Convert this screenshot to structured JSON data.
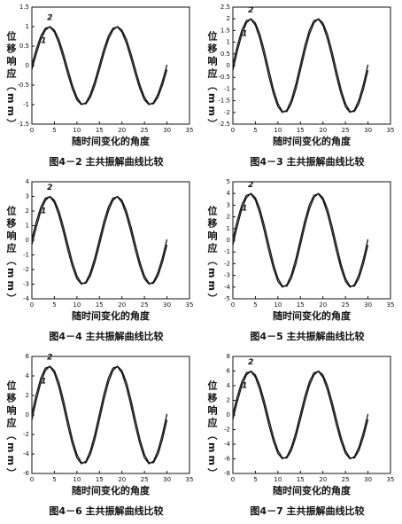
{
  "chart_data": [
    {
      "type": "line",
      "caption": "图4－2  主共振解曲线比较",
      "x_label": "随时间变化的角度",
      "y_label": "位移响应（mm）",
      "x": [
        0,
        1,
        2,
        3,
        4,
        5,
        6,
        7,
        8,
        9,
        10,
        11,
        12,
        13,
        14,
        15,
        16,
        17,
        18,
        19,
        20,
        21,
        22,
        23,
        24,
        25,
        26,
        27,
        28,
        29,
        30
      ],
      "xlim": [
        0,
        35
      ],
      "xticks": [
        0,
        5,
        10,
        15,
        20,
        25,
        30,
        35
      ],
      "ylim": [
        -1.5,
        1.5
      ],
      "yticks": [
        -1.5,
        -1,
        -0.5,
        0,
        0.5,
        1,
        1.5
      ],
      "series": [
        {
          "name": "1",
          "color": "#111",
          "values": [
            -0.1,
            0.31,
            0.67,
            0.91,
            1,
            0.91,
            0.67,
            0.31,
            -0.1,
            -0.5,
            -0.81,
            -0.98,
            -0.98,
            -0.81,
            -0.5,
            -0.1,
            0.31,
            0.67,
            0.91,
            1,
            0.91,
            0.67,
            0.31,
            -0.1,
            -0.5,
            -0.81,
            -0.98,
            -0.98,
            -0.81,
            -0.5,
            -0.1
          ]
        },
        {
          "name": "2",
          "color": "#111",
          "values": [
            0.02,
            0.43,
            0.76,
            0.96,
            0.99,
            0.86,
            0.57,
            0.19,
            -0.23,
            -0.6,
            -0.88,
            -1,
            -0.95,
            -0.73,
            -0.39,
            0.02,
            0.43,
            0.76,
            0.96,
            0.99,
            0.86,
            0.57,
            0.19,
            -0.23,
            -0.6,
            -0.88,
            -1,
            -0.95,
            -0.73,
            -0.39,
            0.02
          ]
        }
      ]
    },
    {
      "type": "line",
      "caption": "图4－3  主共振解曲线比较",
      "x_label": "随时间变化的角度",
      "y_label": "位移响应（mm）",
      "x": [
        0,
        1,
        2,
        3,
        4,
        5,
        6,
        7,
        8,
        9,
        10,
        11,
        12,
        13,
        14,
        15,
        16,
        17,
        18,
        19,
        20,
        21,
        22,
        23,
        24,
        25,
        26,
        27,
        28,
        29,
        30
      ],
      "xlim": [
        0,
        35
      ],
      "xticks": [
        0,
        5,
        10,
        15,
        20,
        25,
        30,
        35
      ],
      "ylim": [
        -2.5,
        2.5
      ],
      "yticks": [
        -2.5,
        -2,
        -1.5,
        -1,
        -0.5,
        0,
        0.5,
        1,
        1.5,
        2,
        2.5
      ],
      "series": [
        {
          "name": "1",
          "color": "#111",
          "values": [
            -0.2,
            0.62,
            1.34,
            1.82,
            2,
            1.82,
            1.34,
            0.62,
            -0.2,
            -1,
            -1.62,
            -1.96,
            -1.96,
            -1.62,
            -1,
            -0.2,
            0.62,
            1.34,
            1.82,
            2,
            1.82,
            1.34,
            0.62,
            -0.2,
            -1,
            -1.62,
            -1.96,
            -1.96,
            -1.62,
            -1,
            -0.2
          ]
        },
        {
          "name": "2",
          "color": "#111",
          "values": [
            0.04,
            0.86,
            1.52,
            1.92,
            1.98,
            1.72,
            1.14,
            0.38,
            -0.46,
            -1.2,
            -1.76,
            -2,
            -1.9,
            -1.46,
            -0.78,
            0.04,
            0.86,
            1.52,
            1.92,
            1.98,
            1.72,
            1.14,
            0.38,
            -0.46,
            -1.2,
            -1.76,
            -2,
            -1.9,
            -1.46,
            -0.78,
            0.04
          ]
        }
      ]
    },
    {
      "type": "line",
      "caption": "图4－4  主共振解曲线比较",
      "x_label": "随时间变化的角度",
      "y_label": "位移响应（mm）",
      "x": [
        0,
        1,
        2,
        3,
        4,
        5,
        6,
        7,
        8,
        9,
        10,
        11,
        12,
        13,
        14,
        15,
        16,
        17,
        18,
        19,
        20,
        21,
        22,
        23,
        24,
        25,
        26,
        27,
        28,
        29,
        30
      ],
      "xlim": [
        0,
        35
      ],
      "xticks": [
        0,
        5,
        10,
        15,
        20,
        25,
        30,
        35
      ],
      "ylim": [
        -4,
        4
      ],
      "yticks": [
        -4,
        -3,
        -2,
        -1,
        0,
        1,
        2,
        3,
        4
      ],
      "series": [
        {
          "name": "1",
          "color": "#111",
          "values": [
            -0.3,
            0.93,
            2.01,
            2.73,
            3,
            2.73,
            2.01,
            0.93,
            -0.3,
            -1.5,
            -2.43,
            -2.94,
            -2.94,
            -2.43,
            -1.5,
            -0.3,
            0.93,
            2.01,
            2.73,
            3,
            2.73,
            2.01,
            0.93,
            -0.3,
            -1.5,
            -2.43,
            -2.94,
            -2.94,
            -2.43,
            -1.5,
            -0.3
          ]
        },
        {
          "name": "2",
          "color": "#111",
          "values": [
            0.06,
            1.29,
            2.28,
            2.88,
            2.97,
            2.58,
            1.71,
            0.57,
            -0.69,
            -1.8,
            -2.64,
            -3,
            -2.85,
            -2.19,
            -1.17,
            0.06,
            1.29,
            2.28,
            2.88,
            2.97,
            2.58,
            1.71,
            0.57,
            -0.69,
            -1.8,
            -2.64,
            -3,
            -2.85,
            -2.19,
            -1.17,
            0.06
          ]
        }
      ]
    },
    {
      "type": "line",
      "caption": "图4－5  主共振解曲线比较",
      "x_label": "随时间变化的角度",
      "y_label": "位移响应（mm）",
      "x": [
        0,
        1,
        2,
        3,
        4,
        5,
        6,
        7,
        8,
        9,
        10,
        11,
        12,
        13,
        14,
        15,
        16,
        17,
        18,
        19,
        20,
        21,
        22,
        23,
        24,
        25,
        26,
        27,
        28,
        29,
        30
      ],
      "xlim": [
        0,
        35
      ],
      "xticks": [
        0,
        5,
        10,
        15,
        20,
        25,
        30,
        35
      ],
      "ylim": [
        -5,
        5
      ],
      "yticks": [
        -5,
        -4,
        -3,
        -2,
        -1,
        0,
        1,
        2,
        3,
        4,
        5
      ],
      "series": [
        {
          "name": "1",
          "color": "#111",
          "values": [
            -0.4,
            1.24,
            2.68,
            3.64,
            4,
            3.64,
            2.68,
            1.24,
            -0.4,
            -2,
            -3.24,
            -3.92,
            -3.92,
            -3.24,
            -2,
            -0.4,
            1.24,
            2.68,
            3.64,
            4,
            3.64,
            2.68,
            1.24,
            -0.4,
            -2,
            -3.24,
            -3.92,
            -3.92,
            -3.24,
            -2,
            -0.4
          ]
        },
        {
          "name": "2",
          "color": "#111",
          "values": [
            0.08,
            1.72,
            3.04,
            3.84,
            3.96,
            3.44,
            2.28,
            0.76,
            -0.92,
            -2.4,
            -3.52,
            -4,
            -3.8,
            -2.92,
            -1.56,
            0.08,
            1.72,
            3.04,
            3.84,
            3.96,
            3.44,
            2.28,
            0.76,
            -0.92,
            -2.4,
            -3.52,
            -4,
            -3.8,
            -2.92,
            -1.56,
            0.08
          ]
        }
      ]
    },
    {
      "type": "line",
      "caption": "图4－6  主共振解曲线比较",
      "x_label": "随时间变化的角度",
      "y_label": "位移响应（mm）",
      "x": [
        0,
        1,
        2,
        3,
        4,
        5,
        6,
        7,
        8,
        9,
        10,
        11,
        12,
        13,
        14,
        15,
        16,
        17,
        18,
        19,
        20,
        21,
        22,
        23,
        24,
        25,
        26,
        27,
        28,
        29,
        30
      ],
      "xlim": [
        0,
        35
      ],
      "xticks": [
        0,
        5,
        10,
        15,
        20,
        25,
        30,
        35
      ],
      "ylim": [
        -6,
        6
      ],
      "yticks": [
        -6,
        -4,
        -2,
        0,
        2,
        4,
        6
      ],
      "series": [
        {
          "name": "1",
          "color": "#111",
          "values": [
            -0.5,
            1.55,
            3.35,
            4.55,
            5,
            4.55,
            3.35,
            1.55,
            -0.5,
            -2.5,
            -4.05,
            -4.9,
            -4.9,
            -4.05,
            -2.5,
            -0.5,
            1.55,
            3.35,
            4.55,
            5,
            4.55,
            3.35,
            1.55,
            -0.5,
            -2.5,
            -4.05,
            -4.9,
            -4.9,
            -4.05,
            -2.5,
            -0.5
          ]
        },
        {
          "name": "2",
          "color": "#111",
          "values": [
            0.1,
            2.15,
            3.8,
            4.8,
            4.95,
            4.3,
            2.85,
            0.95,
            -1.15,
            -3,
            -4.4,
            -5,
            -4.75,
            -3.65,
            -1.95,
            0.1,
            2.15,
            3.8,
            4.8,
            4.95,
            4.3,
            2.85,
            0.95,
            -1.15,
            -3,
            -4.4,
            -5,
            -4.75,
            -3.65,
            -1.95,
            0.1
          ]
        }
      ]
    },
    {
      "type": "line",
      "caption": "图4－7  主共振解曲线比较",
      "x_label": "随时间变化的角度",
      "y_label": "位移响应（mm）",
      "x": [
        0,
        1,
        2,
        3,
        4,
        5,
        6,
        7,
        8,
        9,
        10,
        11,
        12,
        13,
        14,
        15,
        16,
        17,
        18,
        19,
        20,
        21,
        22,
        23,
        24,
        25,
        26,
        27,
        28,
        29,
        30
      ],
      "xlim": [
        0,
        35
      ],
      "xticks": [
        0,
        5,
        10,
        15,
        20,
        25,
        30,
        35
      ],
      "ylim": [
        -8,
        8
      ],
      "yticks": [
        -8,
        -6,
        -4,
        -2,
        0,
        2,
        4,
        6,
        8
      ],
      "series": [
        {
          "name": "1",
          "color": "#111",
          "values": [
            -0.6,
            1.86,
            4.02,
            5.46,
            6,
            5.46,
            4.02,
            1.86,
            -0.6,
            -3,
            -4.86,
            -5.88,
            -5.88,
            -4.86,
            -3,
            -0.6,
            1.86,
            4.02,
            5.46,
            6,
            5.46,
            4.02,
            1.86,
            -0.6,
            -3,
            -4.86,
            -5.88,
            -5.88,
            -4.86,
            -3,
            -0.6
          ]
        },
        {
          "name": "2",
          "color": "#111",
          "values": [
            0.12,
            2.58,
            4.56,
            5.76,
            5.94,
            5.16,
            3.42,
            1.14,
            -1.38,
            -3.6,
            -5.28,
            -6,
            -5.7,
            -4.38,
            -2.34,
            0.12,
            2.58,
            4.56,
            5.76,
            5.94,
            5.16,
            3.42,
            1.14,
            -1.38,
            -3.6,
            -5.28,
            -6,
            -5.7,
            -4.38,
            -2.34,
            0.12
          ]
        }
      ]
    }
  ]
}
